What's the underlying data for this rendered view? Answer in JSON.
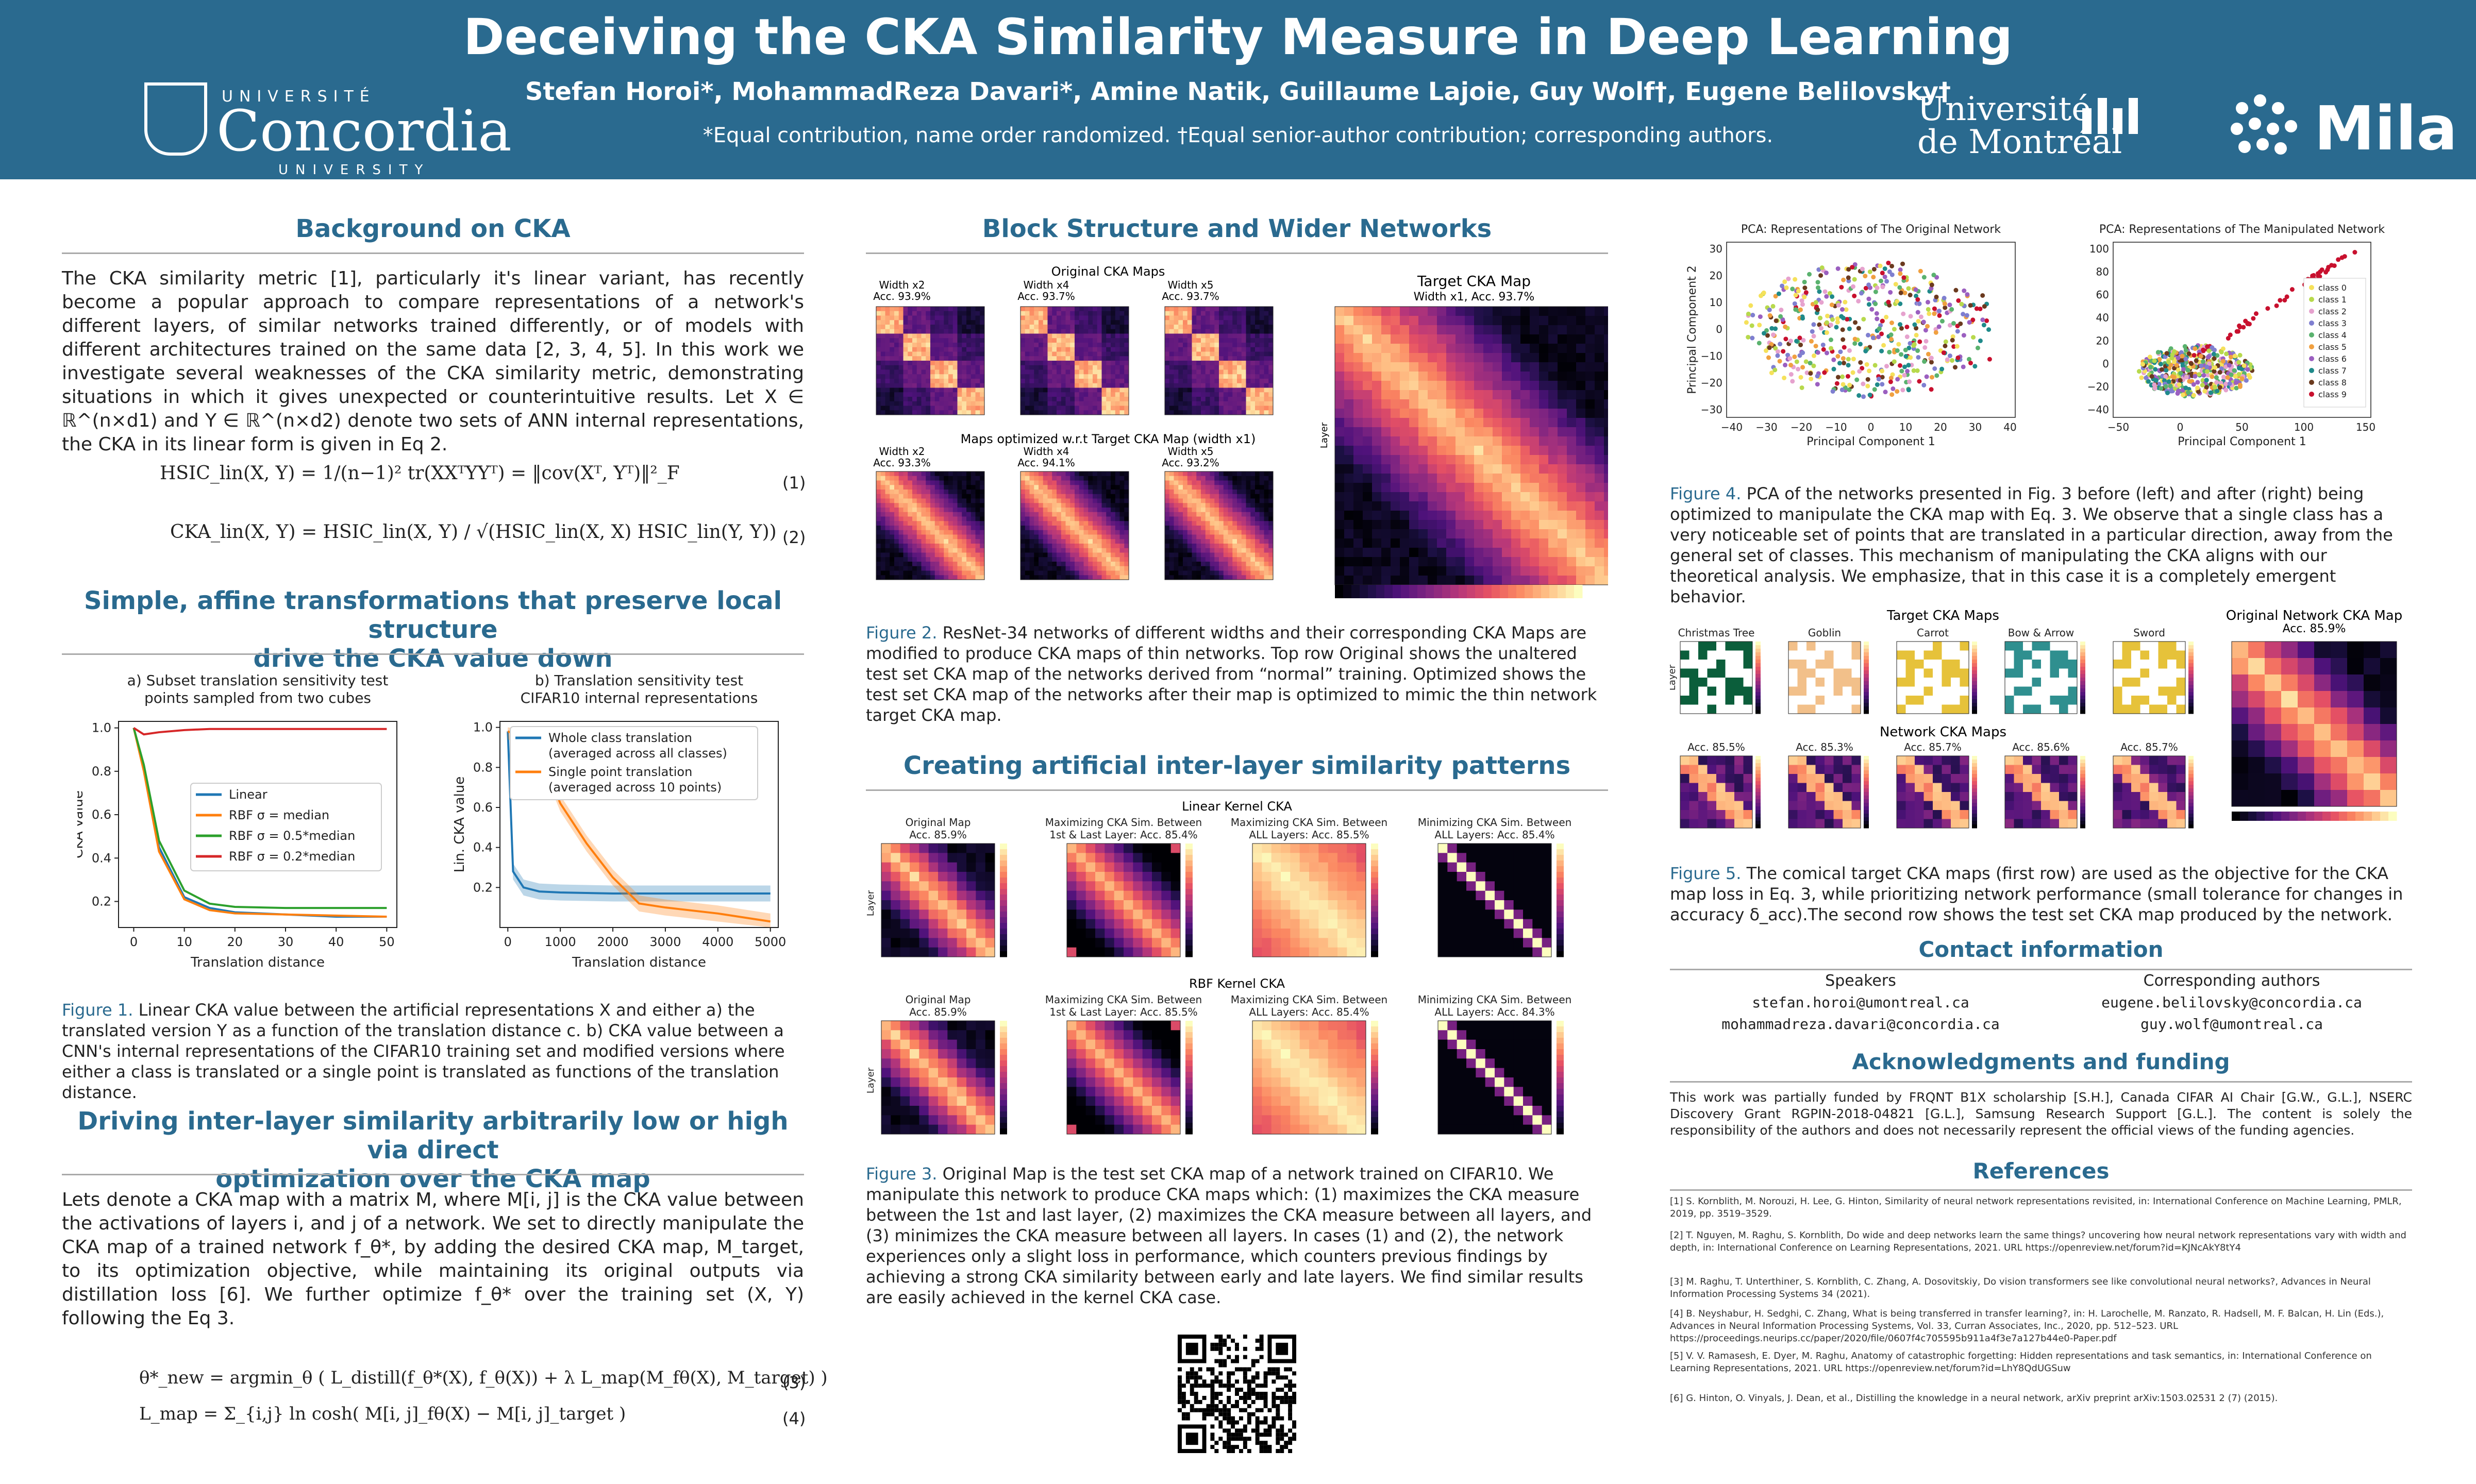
{
  "header": {
    "title": "Deceiving the CKA Similarity Measure in Deep Learning",
    "authors": "Stefan Horoi*, MohammadReza Davari*, Amine Natik, Guillaume Lajoie, Guy Wolf†, Eugene Belilovsky†",
    "affiliation_note": "*Equal contribution, name order randomized. †Equal senior-author contribution; corresponding authors.",
    "logo_concordia_top": "UNIVERSITÉ",
    "logo_concordia_name": "Concordia",
    "logo_concordia_bottom": "UNIVERSITY",
    "logo_udem_line1": "Université",
    "logo_udem_line2": "de Montréal",
    "logo_mila": "Mila",
    "colors": {
      "header_bg": "#2a6a8f",
      "accent": "#2a6a8f"
    }
  },
  "background": {
    "heading": "Background on CKA",
    "body": "The CKA similarity metric [1], particularly it's linear variant, has recently become a popular approach to compare representations of a network's different layers, of similar networks trained differently, or of models with different architectures trained on the same data [2, 3, 4, 5]. In this work we investigate several weaknesses of the CKA similarity metric, demonstrating situations in which it gives unexpected or counterintuitive results. Let X ∈ ℝ^(n×d1) and Y ∈ ℝ^(n×d2) denote two sets of ANN internal representations, the CKA in its linear form is given in Eq 2.",
    "eq1": "HSIC_lin(X, Y) = 1/(n−1)² tr(XXᵀYYᵀ) = ‖cov(Xᵀ, Yᵀ)‖²_F",
    "eq1_num": "(1)",
    "eq2": "CKA_lin(X, Y) = HSIC_lin(X, Y) / √(HSIC_lin(X, X) HSIC_lin(Y, Y))",
    "eq2_num": "(2)"
  },
  "affine": {
    "heading_line1": "Simple, affine transformations that preserve local structure",
    "heading_line2": "drive the CKA value down",
    "caption_label": "Figure 1.",
    "caption": " Linear CKA value between the artificial representations X and either a) the translated version Y as a function of the translation distance c. b) CKA value between a CNN's internal representations of the CIFAR10 training set and modified versions where either a class is translated or a single point is translated as functions of the translation distance."
  },
  "chart_data": [
    {
      "type": "line",
      "title": "a) Subset translation sensitivity test points sampled from two cubes",
      "xlabel": "Translation distance",
      "ylabel": "CKA value",
      "xlim": [
        -3,
        52
      ],
      "ylim": [
        0.08,
        1.03
      ],
      "xticks": [
        0,
        10,
        20,
        30,
        40,
        50
      ],
      "yticks": [
        0.2,
        0.4,
        0.6,
        0.8,
        1.0
      ],
      "legend": "center-right",
      "series": [
        {
          "name": "Linear",
          "color": "#1f77b4",
          "x": [
            0,
            2,
            5,
            10,
            15,
            20,
            30,
            40,
            50
          ],
          "y": [
            1.0,
            0.82,
            0.45,
            0.22,
            0.17,
            0.15,
            0.14,
            0.13,
            0.13
          ]
        },
        {
          "name": "RBF σ = median",
          "color": "#ff7f0e",
          "x": [
            0,
            2,
            5,
            10,
            15,
            20,
            30,
            40,
            50
          ],
          "y": [
            1.0,
            0.8,
            0.43,
            0.21,
            0.16,
            0.145,
            0.14,
            0.135,
            0.13
          ]
        },
        {
          "name": "RBF σ = 0.5*median",
          "color": "#2ca02c",
          "x": [
            0,
            2,
            5,
            10,
            15,
            20,
            30,
            40,
            50
          ],
          "y": [
            1.0,
            0.83,
            0.48,
            0.25,
            0.19,
            0.175,
            0.17,
            0.17,
            0.17
          ]
        },
        {
          "name": "RBF σ = 0.2*median",
          "color": "#d62728",
          "x": [
            0,
            2,
            5,
            10,
            15,
            20,
            30,
            40,
            50
          ],
          "y": [
            1.0,
            0.97,
            0.98,
            0.99,
            0.995,
            0.995,
            0.995,
            0.995,
            0.995
          ]
        }
      ]
    },
    {
      "type": "line",
      "title": "b) Translation sensitivity test CIFAR10 internal representations",
      "xlabel": "Translation distance",
      "ylabel": "Lin. CKA value",
      "xlim": [
        -150,
        5150
      ],
      "ylim": [
        0.0,
        1.03
      ],
      "xticks": [
        0,
        1000,
        2000,
        3000,
        4000,
        5000
      ],
      "yticks": [
        0.2,
        0.4,
        0.6,
        0.8,
        1.0
      ],
      "legend": "top-right",
      "series": [
        {
          "name": "Whole class translation\n(averaged across all classes)",
          "color": "#1f77b4",
          "x": [
            0,
            100,
            300,
            600,
            1000,
            2000,
            3000,
            4000,
            5000
          ],
          "y": [
            0.98,
            0.28,
            0.2,
            0.18,
            0.175,
            0.17,
            0.17,
            0.17,
            0.17
          ]
        },
        {
          "name": "Single point translation\n(averaged across 10 points)",
          "color": "#ff7f0e",
          "x": [
            0,
            300,
            600,
            1000,
            1500,
            2000,
            2500,
            3000,
            4000,
            5000
          ],
          "y": [
            0.98,
            0.95,
            0.88,
            0.62,
            0.42,
            0.25,
            0.12,
            0.1,
            0.07,
            0.03
          ]
        }
      ]
    }
  ],
  "driving": {
    "heading_line1": "Driving inter-layer similarity arbitrarily low or high via direct",
    "heading_line2": "optimization over the CKA map",
    "body": "Lets denote a CKA map with a matrix M, where M[i, j] is the CKA value between the activations of layers i, and j of a network. We set to directly manipulate the CKA map of a trained network f_θ*, by adding the desired CKA map, M_target, to its optimization objective, while maintaining its original outputs via distillation loss [6]. We further optimize f_θ* over the training set (X, Y) following the Eq 3.",
    "eq3": "θ*_new = argmin_θ ( L_distill(f_θ*(X), f_θ(X)) + λ L_map(M_fθ(X), M_target) )",
    "eq3_num": "(3)",
    "eq4": "L_map = Σ_{i,j} ln cosh( M[i, j]_fθ(X) − M[i, j]_target )",
    "eq4_num": "(4)"
  },
  "block": {
    "heading": "Block Structure and Wider Networks",
    "original_label": "Original CKA Maps",
    "target_label": "Target CKA Map",
    "target_sub": "Width x1, Acc. 93.7%",
    "optimized_label": "Maps optimized w.r.t Target CKA Map (width x1)",
    "top": [
      {
        "title": "Width x2",
        "acc": "Acc. 93.9%"
      },
      {
        "title": "Width x4",
        "acc": "Acc. 93.7%"
      },
      {
        "title": "Width x5",
        "acc": "Acc. 93.7%"
      }
    ],
    "bottom": [
      {
        "title": "Width x2",
        "acc": "Acc. 93.3%"
      },
      {
        "title": "Width x4",
        "acc": "Acc. 94.1%"
      },
      {
        "title": "Width x5",
        "acc": "Acc. 93.2%"
      }
    ],
    "axis_layer": "Layer",
    "caption_label": "Figure 2.",
    "caption": " ResNet-34 networks of different widths and their corresponding CKA Maps are modified to produce CKA maps of thin networks. Top row Original shows the unaltered test set CKA map of the networks derived from “normal” training. Optimized shows the test set CKA map of the networks after their map is optimized to mimic the thin network target CKA map."
  },
  "artificial": {
    "heading": "Creating artificial inter-layer similarity patterns",
    "linear_label": "Linear Kernel CKA",
    "rbf_label": "RBF Kernel CKA",
    "linear_panels": [
      {
        "t1": "Original Map",
        "t2": "Acc. 85.9%"
      },
      {
        "t1": "Maximizing CKA Sim. Between",
        "t2": "1st & Last Layer: Acc. 85.4%"
      },
      {
        "t1": "Maximizing CKA Sim. Between",
        "t2": "ALL Layers: Acc. 85.5%"
      },
      {
        "t1": "Minimizing CKA Sim. Between",
        "t2": "ALL Layers: Acc. 85.4%"
      }
    ],
    "rbf_panels": [
      {
        "t1": "Original Map",
        "t2": "Acc. 85.9%"
      },
      {
        "t1": "Maximizing CKA Sim. Between",
        "t2": "1st & Last Layer: Acc. 85.5%"
      },
      {
        "t1": "Maximizing CKA Sim. Between",
        "t2": "ALL Layers: Acc. 85.4%"
      },
      {
        "t1": "Minimizing CKA Sim. Between",
        "t2": "ALL Layers: Acc. 84.3%"
      }
    ],
    "axis_layer": "Layer",
    "caption_label": "Figure 3.",
    "caption": " Original Map is the test set CKA map of a network trained on CIFAR10. We manipulate this network to produce CKA maps which: (1) maximizes the CKA measure between the 1st and last layer, (2) maximizes the CKA measure between all layers, and (3) minimizes the CKA measure between all layers. In cases (1) and (2), the network experiences only a slight loss in performance, which counters previous findings by achieving a strong CKA similarity between early and late layers. We find similar results are easily achieved in the kernel CKA case."
  },
  "pca": {
    "left_title": "PCA: Representations of The Original Network",
    "right_title": "PCA: Representations of The Manipulated Network",
    "xlabel": "Principal Component 1",
    "ylabel": "Principal Component 2",
    "left_xticks": [
      "−40",
      "−30",
      "−20",
      "−10",
      "0",
      "10",
      "20",
      "30",
      "40"
    ],
    "left_yticks": [
      "30",
      "20",
      "10",
      "0",
      "−10",
      "−20",
      "−30"
    ],
    "right_xticks": [
      "−50",
      "0",
      "50",
      "100",
      "150"
    ],
    "right_yticks": [
      "100",
      "80",
      "60",
      "40",
      "20",
      "0",
      "−20",
      "−40"
    ],
    "legend": [
      "class 0",
      "class 1",
      "class 2",
      "class 3",
      "class 4",
      "class 5",
      "class 6",
      "class 7",
      "class 8",
      "class 9"
    ],
    "legend_colors": [
      "#f5e15b",
      "#b7d94c",
      "#e6a2ce",
      "#7f7fd0",
      "#5ab26e",
      "#f0a040",
      "#9b5fc0",
      "#1f8a8a",
      "#6b3a1f",
      "#c8102e"
    ],
    "caption_label": "Figure 4.",
    "caption": " PCA of the networks presented in Fig. 3 before (left) and after (right) being optimized to manipulate the CKA map with Eq. 3. We observe that a single class has a very noticeable set of points that are translated in a particular direction, away from the general set of classes. This mechanism of manipulating the CKA aligns with our theoretical analysis. We emphasize, that in this case it is a completely emergent behavior."
  },
  "comical": {
    "target_label": "Target CKA Maps",
    "network_label": "Network CKA Maps",
    "original_label": "Original Network CKA Map",
    "original_acc": "Acc. 85.9%",
    "targets": [
      "Christmas Tree",
      "Goblin",
      "Carrot",
      "Bow & Arrow",
      "Sword"
    ],
    "accs": [
      "Acc. 85.5%",
      "Acc. 85.3%",
      "Acc. 85.7%",
      "Acc. 85.6%",
      "Acc. 85.7%"
    ],
    "axis_layer": "Layer",
    "caption_label": "Figure 5.",
    "caption": " The comical target CKA maps (first row) are used as the objective for the CKA map loss in Eq. 3, while prioritizing network performance (small tolerance for changes in accuracy δ_acc).The second row shows the test set CKA map produced by the network."
  },
  "contact": {
    "heading": "Contact information",
    "speakers_label": "Speakers",
    "corresponding_label": "Corresponding authors",
    "speakers": [
      "stefan.horoi@umontreal.ca",
      "mohammadreza.davari@concordia.ca"
    ],
    "corresponding": [
      "eugene.belilovsky@concordia.ca",
      "guy.wolf@umontreal.ca"
    ]
  },
  "ack": {
    "heading": "Acknowledgments and funding",
    "body": "This work was partially funded by FRQNT B1X scholarship [S.H.], Canada CIFAR AI Chair [G.W., G.L.], NSERC Discovery Grant RGPIN-2018-04821 [G.L.], Samsung Research Support [G.L.]. The content is solely the responsibility of the authors and does not necessarily represent the official views of the funding agencies."
  },
  "references": {
    "heading": "References",
    "items": [
      "[1]  S. Kornblith, M. Norouzi, H. Lee, G. Hinton, Similarity of neural network representations revisited, in: International Conference on Machine Learning, PMLR, 2019, pp. 3519–3529.",
      "[2]  T. Nguyen, M. Raghu, S. Kornblith, Do wide and deep networks learn the same things? uncovering how neural network representations vary with width and depth, in: International Conference on Learning Representations, 2021. URL https://openreview.net/forum?id=KJNcAkY8tY4",
      "[3]  M. Raghu, T. Unterthiner, S. Kornblith, C. Zhang, A. Dosovitskiy, Do vision transformers see like convolutional neural networks?, Advances in Neural Information Processing Systems 34 (2021).",
      "[4]  B. Neyshabur, H. Sedghi, C. Zhang, What is being transferred in transfer learning?, in: H. Larochelle, M. Ranzato, R. Hadsell, M. F. Balcan, H. Lin (Eds.), Advances in Neural Information Processing Systems, Vol. 33, Curran Associates, Inc., 2020, pp. 512–523. URL https://proceedings.neurips.cc/paper/2020/file/0607f4c705595b911a4f3e7a127b44e0-Paper.pdf",
      "[5]  V. V. Ramasesh, E. Dyer, M. Raghu, Anatomy of catastrophic forgetting: Hidden representations and task semantics, in: International Conference on Learning Representations, 2021. URL https://openreview.net/forum?id=LhY8QdUGSuw",
      "[6]  G. Hinton, O. Vinyals, J. Dean, et al., Distilling the knowledge in a neural network, arXiv preprint arXiv:1503.02531 2 (7) (2015)."
    ]
  }
}
